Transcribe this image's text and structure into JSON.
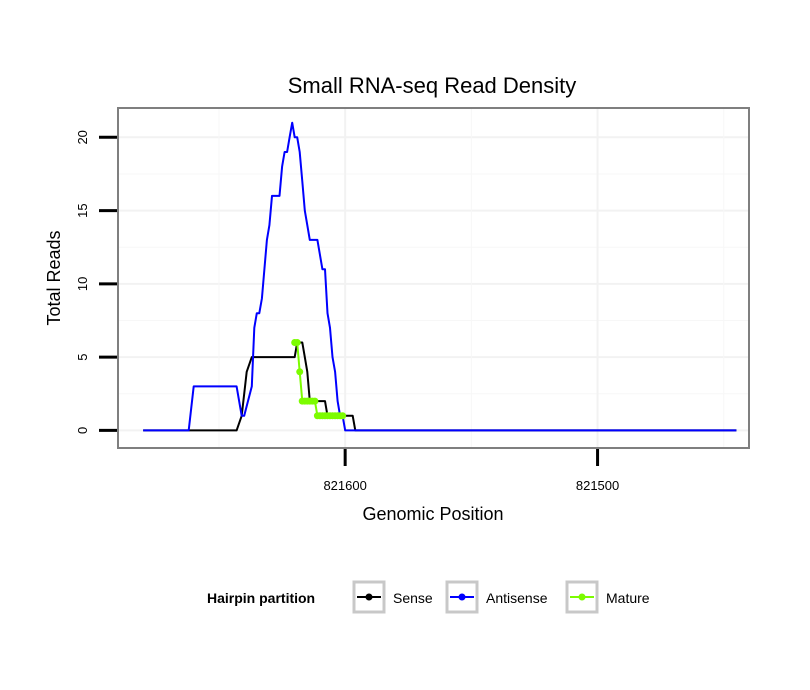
{
  "chart_data": {
    "type": "line",
    "title": "Small RNA-seq Read Density",
    "xlabel": "Genomic Position",
    "ylabel": "Total Reads",
    "x_reversed": true,
    "xlim": [
      821690,
      821440
    ],
    "ylim": [
      -1.2,
      22
    ],
    "x_ticks": [
      821600,
      821500
    ],
    "x_tick_labels": [
      "821600",
      "821500"
    ],
    "y_ticks": [
      0,
      5,
      10,
      15,
      20
    ],
    "y_tick_labels": [
      "0",
      "5",
      "10",
      "15",
      "20"
    ],
    "grid": true,
    "legend": {
      "title": "Hairpin partition",
      "position": "bottom",
      "entries": [
        "Sense",
        "Antisense",
        "Mature"
      ]
    },
    "series": [
      {
        "name": "Sense",
        "color": "#000000",
        "markers": false,
        "points": [
          [
            821680,
            0
          ],
          [
            821643,
            0
          ],
          [
            821641,
            1
          ],
          [
            821639,
            4
          ],
          [
            821637,
            5
          ],
          [
            821620,
            5
          ],
          [
            821619,
            6
          ],
          [
            821617,
            6
          ],
          [
            821616,
            5
          ],
          [
            821615,
            4
          ],
          [
            821614,
            2
          ],
          [
            821608,
            2
          ],
          [
            821607,
            1
          ],
          [
            821597,
            1
          ],
          [
            821596,
            0
          ],
          [
            821445,
            0
          ]
        ]
      },
      {
        "name": "Antisense",
        "color": "#0000ff",
        "markers": false,
        "points": [
          [
            821680,
            0
          ],
          [
            821662,
            0
          ],
          [
            821660,
            3
          ],
          [
            821643,
            3
          ],
          [
            821641,
            1
          ],
          [
            821640,
            1
          ],
          [
            821637,
            3
          ],
          [
            821636,
            7
          ],
          [
            821635,
            8
          ],
          [
            821634,
            8
          ],
          [
            821633,
            9
          ],
          [
            821632,
            11
          ],
          [
            821631,
            13
          ],
          [
            821630,
            14
          ],
          [
            821629,
            16
          ],
          [
            821626,
            16
          ],
          [
            821625,
            18
          ],
          [
            821624,
            19
          ],
          [
            821623,
            19
          ],
          [
            821622,
            20
          ],
          [
            821621,
            21
          ],
          [
            821620,
            20
          ],
          [
            821619,
            20
          ],
          [
            821618,
            19
          ],
          [
            821617,
            17
          ],
          [
            821616,
            15
          ],
          [
            821615,
            14
          ],
          [
            821614,
            13
          ],
          [
            821611,
            13
          ],
          [
            821609,
            11
          ],
          [
            821608,
            11
          ],
          [
            821607,
            8
          ],
          [
            821606,
            7
          ],
          [
            821605,
            5
          ],
          [
            821604,
            4
          ],
          [
            821603,
            2
          ],
          [
            821602,
            1
          ],
          [
            821601,
            1
          ],
          [
            821600,
            0
          ],
          [
            821445,
            0
          ]
        ]
      },
      {
        "name": "Mature",
        "color": "#7cfc00",
        "markers": true,
        "points": [
          [
            821620,
            6
          ],
          [
            821619,
            6
          ],
          [
            821618,
            4
          ],
          [
            821617,
            2
          ],
          [
            821616,
            2
          ],
          [
            821615,
            2
          ],
          [
            821614,
            2
          ],
          [
            821613,
            2
          ],
          [
            821612,
            2
          ],
          [
            821611,
            1
          ],
          [
            821610,
            1
          ],
          [
            821609,
            1
          ],
          [
            821608,
            1
          ],
          [
            821607,
            1
          ],
          [
            821606,
            1
          ],
          [
            821605,
            1
          ],
          [
            821604,
            1
          ],
          [
            821603,
            1
          ],
          [
            821602,
            1
          ],
          [
            821601,
            1
          ]
        ]
      }
    ]
  }
}
